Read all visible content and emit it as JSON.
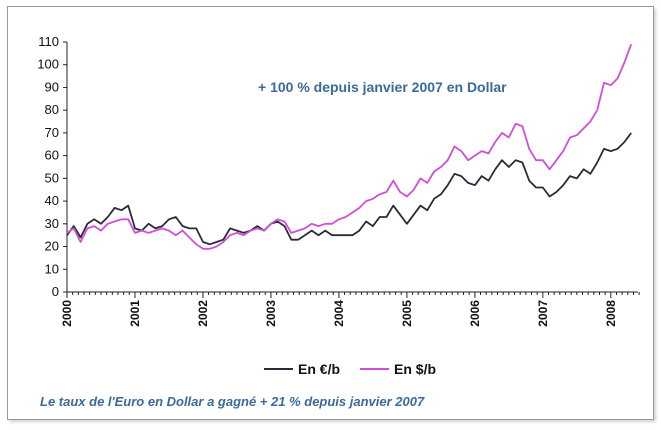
{
  "chart_data": {
    "type": "line",
    "annotation": "+ 100 % depuis janvier 2007 en Dollar",
    "footer": "Le taux de l'Euro en Dollar a gagné + 21 % depuis janvier 2007",
    "ylim": [
      0,
      110
    ],
    "yticks": [
      "0",
      "10",
      "20",
      "30",
      "40",
      "50",
      "60",
      "70",
      "80",
      "90",
      "100",
      "110"
    ],
    "xlim": [
      2000,
      2008.4
    ],
    "xticks": [
      "2000",
      "2001",
      "2002",
      "2003",
      "2004",
      "2005",
      "2006",
      "2007",
      "2008"
    ],
    "grid": false,
    "legend_position": "bottom",
    "series": [
      {
        "name": "En €/b",
        "color": "#2b2b3b",
        "points": [
          [
            2000.0,
            25
          ],
          [
            2000.1,
            29
          ],
          [
            2000.2,
            24
          ],
          [
            2000.3,
            30
          ],
          [
            2000.4,
            32
          ],
          [
            2000.5,
            30
          ],
          [
            2000.6,
            33
          ],
          [
            2000.7,
            37
          ],
          [
            2000.8,
            36
          ],
          [
            2000.9,
            38
          ],
          [
            2001.0,
            28
          ],
          [
            2001.1,
            27
          ],
          [
            2001.2,
            30
          ],
          [
            2001.3,
            28
          ],
          [
            2001.4,
            29
          ],
          [
            2001.5,
            32
          ],
          [
            2001.6,
            33
          ],
          [
            2001.7,
            29
          ],
          [
            2001.8,
            28
          ],
          [
            2001.9,
            28
          ],
          [
            2002.0,
            22
          ],
          [
            2002.1,
            21
          ],
          [
            2002.2,
            22
          ],
          [
            2002.3,
            23
          ],
          [
            2002.4,
            28
          ],
          [
            2002.5,
            27
          ],
          [
            2002.6,
            26
          ],
          [
            2002.7,
            27
          ],
          [
            2002.8,
            29
          ],
          [
            2002.9,
            27
          ],
          [
            2003.0,
            30
          ],
          [
            2003.1,
            31
          ],
          [
            2003.2,
            29
          ],
          [
            2003.3,
            23
          ],
          [
            2003.4,
            23
          ],
          [
            2003.5,
            25
          ],
          [
            2003.6,
            27
          ],
          [
            2003.7,
            25
          ],
          [
            2003.8,
            27
          ],
          [
            2003.9,
            25
          ],
          [
            2004.0,
            25
          ],
          [
            2004.2,
            25
          ],
          [
            2004.3,
            27
          ],
          [
            2004.4,
            31
          ],
          [
            2004.5,
            29
          ],
          [
            2004.6,
            33
          ],
          [
            2004.7,
            33
          ],
          [
            2004.8,
            38
          ],
          [
            2004.9,
            34
          ],
          [
            2005.0,
            30
          ],
          [
            2005.1,
            34
          ],
          [
            2005.2,
            38
          ],
          [
            2005.3,
            36
          ],
          [
            2005.4,
            41
          ],
          [
            2005.5,
            43
          ],
          [
            2005.6,
            47
          ],
          [
            2005.7,
            52
          ],
          [
            2005.8,
            51
          ],
          [
            2005.9,
            48
          ],
          [
            2006.0,
            47
          ],
          [
            2006.1,
            51
          ],
          [
            2006.2,
            49
          ],
          [
            2006.3,
            54
          ],
          [
            2006.4,
            58
          ],
          [
            2006.5,
            55
          ],
          [
            2006.6,
            58
          ],
          [
            2006.7,
            57
          ],
          [
            2006.8,
            49
          ],
          [
            2006.9,
            46
          ],
          [
            2007.0,
            46
          ],
          [
            2007.1,
            42
          ],
          [
            2007.2,
            44
          ],
          [
            2007.3,
            47
          ],
          [
            2007.4,
            51
          ],
          [
            2007.5,
            50
          ],
          [
            2007.6,
            54
          ],
          [
            2007.7,
            52
          ],
          [
            2007.8,
            57
          ],
          [
            2007.9,
            63
          ],
          [
            2008.0,
            62
          ],
          [
            2008.1,
            63
          ],
          [
            2008.2,
            66
          ],
          [
            2008.3,
            70
          ]
        ]
      },
      {
        "name": "En $/b",
        "color": "#d04fd6",
        "points": [
          [
            2000.0,
            26
          ],
          [
            2000.1,
            28
          ],
          [
            2000.2,
            22
          ],
          [
            2000.3,
            28
          ],
          [
            2000.4,
            29
          ],
          [
            2000.5,
            27
          ],
          [
            2000.6,
            30
          ],
          [
            2000.7,
            31
          ],
          [
            2000.8,
            32
          ],
          [
            2000.9,
            32
          ],
          [
            2001.0,
            26
          ],
          [
            2001.1,
            27
          ],
          [
            2001.2,
            26
          ],
          [
            2001.3,
            27
          ],
          [
            2001.4,
            28
          ],
          [
            2001.5,
            27
          ],
          [
            2001.6,
            25
          ],
          [
            2001.7,
            27
          ],
          [
            2001.8,
            24
          ],
          [
            2001.9,
            21
          ],
          [
            2002.0,
            19
          ],
          [
            2002.1,
            19
          ],
          [
            2002.2,
            20
          ],
          [
            2002.3,
            22
          ],
          [
            2002.4,
            25
          ],
          [
            2002.5,
            26
          ],
          [
            2002.6,
            25
          ],
          [
            2002.7,
            27
          ],
          [
            2002.8,
            28
          ],
          [
            2002.9,
            27
          ],
          [
            2003.0,
            30
          ],
          [
            2003.1,
            32
          ],
          [
            2003.2,
            31
          ],
          [
            2003.3,
            26
          ],
          [
            2003.4,
            27
          ],
          [
            2003.5,
            28
          ],
          [
            2003.6,
            30
          ],
          [
            2003.7,
            29
          ],
          [
            2003.8,
            30
          ],
          [
            2003.9,
            30
          ],
          [
            2004.0,
            32
          ],
          [
            2004.1,
            33
          ],
          [
            2004.2,
            35
          ],
          [
            2004.3,
            37
          ],
          [
            2004.4,
            40
          ],
          [
            2004.5,
            41
          ],
          [
            2004.6,
            43
          ],
          [
            2004.7,
            44
          ],
          [
            2004.8,
            49
          ],
          [
            2004.9,
            44
          ],
          [
            2005.0,
            42
          ],
          [
            2005.1,
            45
          ],
          [
            2005.2,
            50
          ],
          [
            2005.3,
            48
          ],
          [
            2005.4,
            53
          ],
          [
            2005.5,
            55
          ],
          [
            2005.6,
            58
          ],
          [
            2005.7,
            64
          ],
          [
            2005.8,
            62
          ],
          [
            2005.9,
            58
          ],
          [
            2006.0,
            60
          ],
          [
            2006.1,
            62
          ],
          [
            2006.2,
            61
          ],
          [
            2006.3,
            66
          ],
          [
            2006.4,
            70
          ],
          [
            2006.5,
            68
          ],
          [
            2006.6,
            74
          ],
          [
            2006.7,
            73
          ],
          [
            2006.8,
            63
          ],
          [
            2006.9,
            58
          ],
          [
            2007.0,
            58
          ],
          [
            2007.1,
            54
          ],
          [
            2007.2,
            58
          ],
          [
            2007.3,
            62
          ],
          [
            2007.4,
            68
          ],
          [
            2007.5,
            69
          ],
          [
            2007.6,
            72
          ],
          [
            2007.7,
            75
          ],
          [
            2007.8,
            80
          ],
          [
            2007.9,
            92
          ],
          [
            2008.0,
            91
          ],
          [
            2008.1,
            94
          ],
          [
            2008.2,
            101
          ],
          [
            2008.3,
            109
          ]
        ]
      }
    ]
  }
}
